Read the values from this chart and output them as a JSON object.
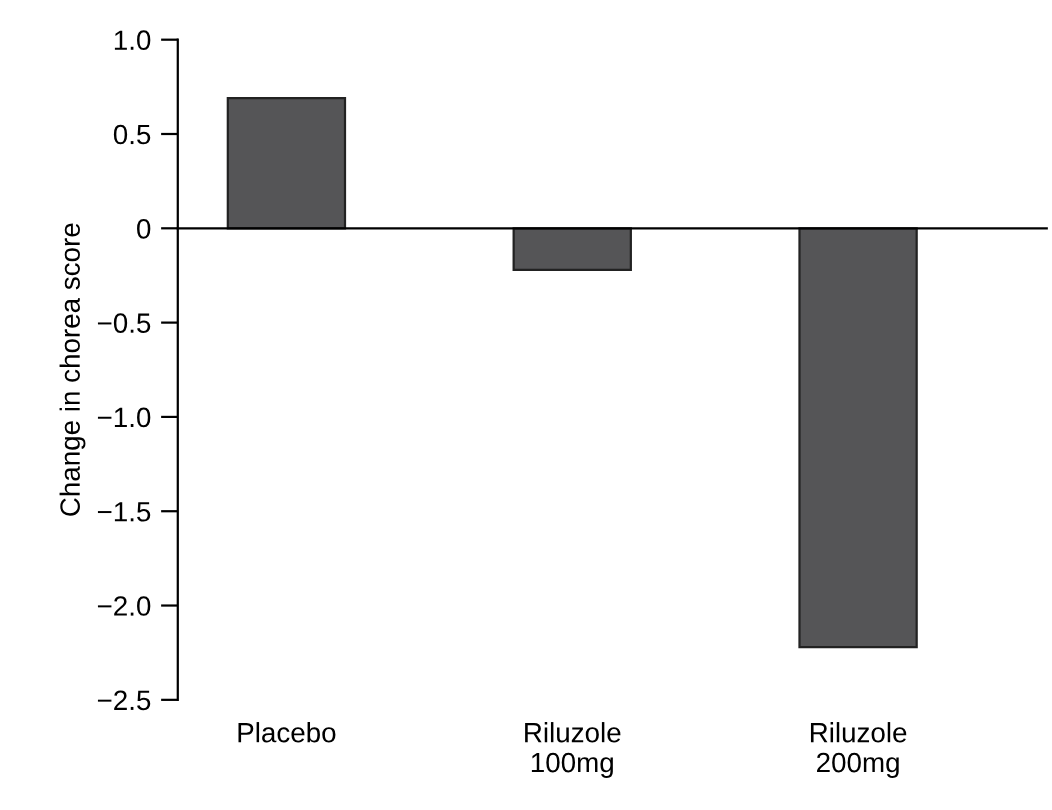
{
  "chart_data": {
    "type": "bar",
    "ylabel": "Change in chorea score",
    "categories": [
      "Placebo",
      "Riluzole\n100mg",
      "Riluzole\n200mg"
    ],
    "values": [
      0.69,
      -0.22,
      -2.22
    ],
    "color": "#555557",
    "ylim": [
      -2.5,
      1.0
    ],
    "yticks": [
      {
        "value": -2.5,
        "label": "−2.5"
      },
      {
        "value": -2.0,
        "label": "−2.0"
      },
      {
        "value": -1.5,
        "label": "−1.5"
      },
      {
        "value": -1.0,
        "label": "−1.0"
      },
      {
        "value": -0.5,
        "label": "−0.5"
      },
      0,
      0.5,
      {
        "value": 1.0,
        "label": "1.0"
      }
    ]
  }
}
